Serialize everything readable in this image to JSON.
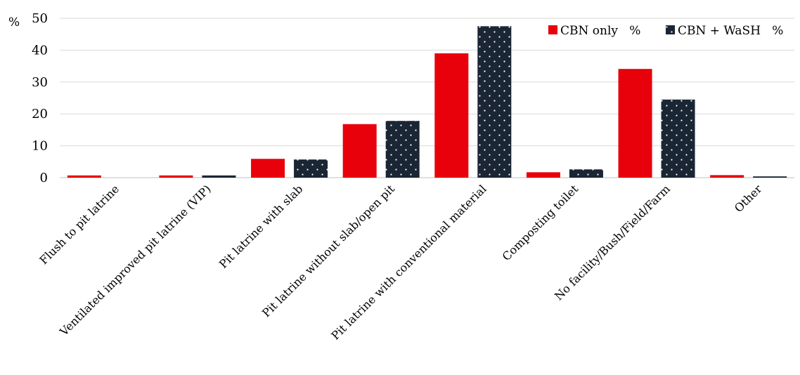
{
  "chart_data": {
    "type": "bar",
    "title": "",
    "xlabel": "",
    "ylabel": "%",
    "ylim": [
      0,
      50
    ],
    "yticks": [
      0,
      10,
      20,
      30,
      40,
      50
    ],
    "grid": true,
    "legend_position": "top-right",
    "categories": [
      "Flush to pit latrine",
      "Ventilated improved pit latrine (VIP)",
      "Pit latrine with slab",
      "Pit latrine without slab/open pit",
      "Pit latrine with conventional material",
      "Composting toilet",
      "No facility/Bush/Field/Farm",
      "Other"
    ],
    "series": [
      {
        "name": "CBN only   %",
        "color": "#e8000b",
        "pattern": "solid",
        "values": [
          0.7,
          0.7,
          5.9,
          16.8,
          39.0,
          1.7,
          34.1,
          0.8
        ]
      },
      {
        "name": "CBN + WaSH   %",
        "color": "#1b2634",
        "pattern": "dotted",
        "values": [
          0.0,
          0.7,
          5.7,
          17.8,
          47.5,
          2.6,
          24.5,
          0.4
        ]
      }
    ]
  }
}
